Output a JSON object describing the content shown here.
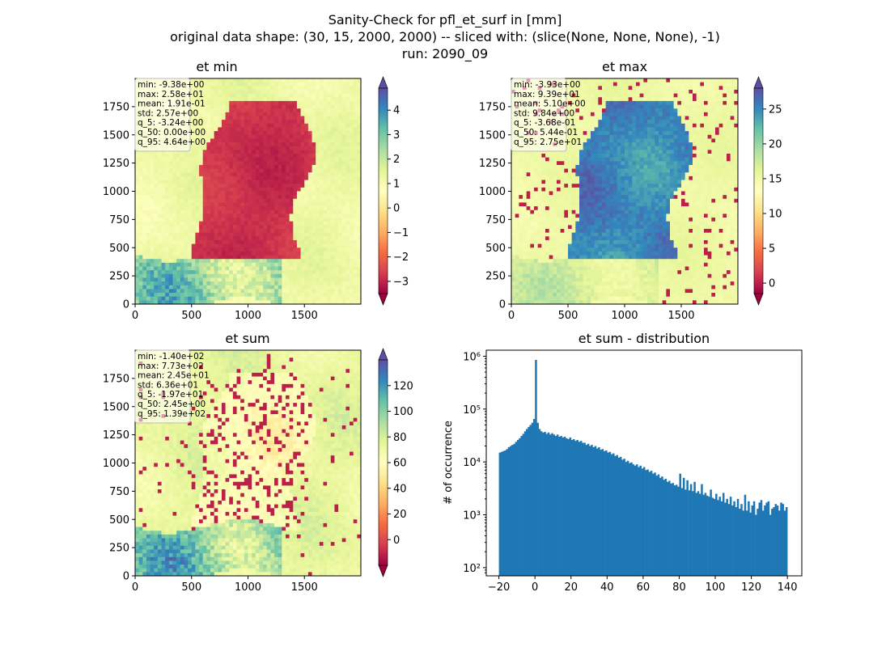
{
  "figure": {
    "suptitle": [
      "Sanity-Check for pfl_et_surf in [mm]",
      "original data shape: (30, 15, 2000, 2000) -- sliced with: (slice(None, None, None), -1)",
      "run: 2090_09"
    ]
  },
  "chart_data": [
    {
      "type": "heatmap",
      "title": "et min",
      "xlabel": "",
      "ylabel": "",
      "xlim": [
        0,
        2000
      ],
      "ylim": [
        0,
        2000
      ],
      "x_ticks": [
        0,
        500,
        1000,
        1500
      ],
      "y_ticks": [
        0,
        250,
        500,
        750,
        1000,
        1250,
        1500,
        1750
      ],
      "colorbar": {
        "cmap": "Spectral",
        "range": [
          -3.5,
          4.9
        ],
        "ticks": [
          -3,
          -2,
          -1,
          0,
          1,
          2,
          3,
          4
        ],
        "extend": "both",
        "tick_labels": [
          "−3",
          "−2",
          "−1",
          "0",
          "1",
          "2",
          "3",
          "4"
        ]
      },
      "stats": [
        "min: -9.38e+00",
        "max: 2.58e+01",
        "mean: 1.91e-01",
        "std: 2.57e+00",
        "q_5: -3.24e+00",
        "q_50: 0.00e+00",
        "q_95: 4.64e+00"
      ]
    },
    {
      "type": "heatmap",
      "title": "et max",
      "xlabel": "",
      "ylabel": "",
      "xlim": [
        0,
        2000
      ],
      "ylim": [
        0,
        2000
      ],
      "x_ticks": [
        0,
        500,
        1000,
        1500
      ],
      "y_ticks": [
        0,
        250,
        500,
        750,
        1000,
        1250,
        1500,
        1750
      ],
      "colorbar": {
        "cmap": "Spectral",
        "range": [
          -1.5,
          28
        ],
        "ticks": [
          0,
          5,
          10,
          15,
          20,
          25
        ],
        "extend": "both",
        "tick_labels": [
          "0",
          "5",
          "10",
          "15",
          "20",
          "25"
        ]
      },
      "stats": [
        "min: -3.93e+00",
        "max: 9.39e+01",
        "mean: 5.10e+00",
        "std: 9.84e+00",
        "q_5: -3.68e-01",
        "q_50: 5.44e-01",
        "q_95: 2.75e+01"
      ]
    },
    {
      "type": "heatmap",
      "title": "et sum",
      "xlabel": "",
      "ylabel": "",
      "xlim": [
        0,
        2000
      ],
      "ylim": [
        0,
        2000
      ],
      "x_ticks": [
        0,
        500,
        1000,
        1500
      ],
      "y_ticks": [
        0,
        250,
        500,
        750,
        1000,
        1250,
        1500,
        1750
      ],
      "colorbar": {
        "cmap": "Spectral",
        "range": [
          -20,
          140
        ],
        "ticks": [
          0,
          20,
          40,
          60,
          80,
          100,
          120
        ],
        "extend": "both",
        "tick_labels": [
          "0",
          "20",
          "40",
          "60",
          "80",
          "100",
          "120"
        ]
      },
      "stats": [
        "min: -1.40e+02",
        "max: 7.73e+02",
        "mean: 2.45e+01",
        "std: 6.36e+01",
        "q_5: -1.97e+01",
        "q_50: 2.45e+00",
        "q_95: 1.39e+02"
      ]
    },
    {
      "type": "bar",
      "title": "et sum - distribution",
      "xlabel": "",
      "ylabel": "# of occurrence",
      "xlim": [
        -27,
        148
      ],
      "x_ticks": [
        -20,
        0,
        20,
        40,
        60,
        80,
        100,
        120,
        140
      ],
      "x_tick_labels": [
        "−20",
        "0",
        "20",
        "40",
        "60",
        "80",
        "100",
        "120",
        "140"
      ],
      "y_scale": "log",
      "ylim": [
        70,
        1300000
      ],
      "y_ticks": [
        100,
        1000,
        10000,
        100000,
        1000000
      ],
      "y_tick_labels": [
        "10²",
        "10³",
        "10⁴",
        "10⁵",
        "10⁶"
      ],
      "bar_color": "#1f77b4",
      "bin_width": 1,
      "x": [
        -20,
        -19,
        -18,
        -17,
        -16,
        -15,
        -14,
        -13,
        -12,
        -11,
        -10,
        -9,
        -8,
        -7,
        -6,
        -5,
        -4,
        -3,
        -2,
        -1,
        0,
        1,
        2,
        3,
        4,
        5,
        6,
        7,
        8,
        9,
        10,
        11,
        12,
        13,
        14,
        15,
        16,
        17,
        18,
        19,
        20,
        21,
        22,
        23,
        24,
        25,
        26,
        27,
        28,
        29,
        30,
        31,
        32,
        33,
        34,
        35,
        36,
        37,
        38,
        39,
        40,
        41,
        42,
        43,
        44,
        45,
        46,
        47,
        48,
        49,
        50,
        51,
        52,
        53,
        54,
        55,
        56,
        57,
        58,
        59,
        60,
        61,
        62,
        63,
        64,
        65,
        66,
        67,
        68,
        69,
        70,
        71,
        72,
        73,
        74,
        75,
        76,
        77,
        78,
        79,
        80,
        81,
        82,
        83,
        84,
        85,
        86,
        87,
        88,
        89,
        90,
        91,
        92,
        93,
        94,
        95,
        96,
        97,
        98,
        99,
        100,
        101,
        102,
        103,
        104,
        105,
        106,
        107,
        108,
        109,
        110,
        111,
        112,
        113,
        114,
        115,
        116,
        117,
        118,
        119,
        120,
        121,
        122,
        123,
        124,
        125,
        126,
        127,
        128,
        129,
        130,
        131,
        132,
        133,
        134,
        135,
        136,
        137,
        138,
        139
      ],
      "values": [
        15000,
        15500,
        16000,
        16500,
        17500,
        19000,
        20000,
        21000,
        22000,
        24000,
        26000,
        28000,
        31000,
        34000,
        38000,
        42000,
        46000,
        50000,
        55000,
        65000,
        850000,
        55000,
        42000,
        38000,
        36000,
        37000,
        34000,
        36000,
        33000,
        35000,
        33000,
        31000,
        33000,
        30000,
        31000,
        29000,
        30000,
        28000,
        27000,
        29000,
        26000,
        27000,
        25000,
        26000,
        24000,
        25000,
        23000,
        23000,
        21000,
        22000,
        20000,
        21000,
        19000,
        20000,
        18000,
        19000,
        17000,
        17500,
        16000,
        16500,
        15000,
        15500,
        14000,
        14500,
        13000,
        13500,
        12000,
        12500,
        11000,
        11500,
        10000,
        10500,
        9500,
        9800,
        9000,
        8500,
        9000,
        8000,
        8500,
        7500,
        8000,
        7000,
        7200,
        6500,
        6800,
        6000,
        6300,
        5500,
        5800,
        5000,
        5300,
        4600,
        4800,
        4200,
        4400,
        3900,
        4000,
        3600,
        3700,
        3400,
        6000,
        3200,
        5000,
        3000,
        4500,
        2900,
        3800,
        2800,
        4200,
        2600,
        2800,
        2500,
        3800,
        2400,
        2600,
        2300,
        2200,
        3000,
        2100,
        2000,
        2500,
        1900,
        2200,
        1800,
        2600,
        1700,
        2000,
        1600,
        2200,
        1500,
        1800,
        1400,
        2000,
        1300,
        1600,
        1200,
        2400,
        1200,
        1800,
        1100,
        1500,
        1800,
        1000,
        1300,
        1700,
        1900,
        1200,
        1500,
        1700,
        1800,
        1000,
        1300,
        1400,
        1600,
        1500,
        1200,
        1700,
        1600,
        1200,
        1400
      ]
    }
  ]
}
